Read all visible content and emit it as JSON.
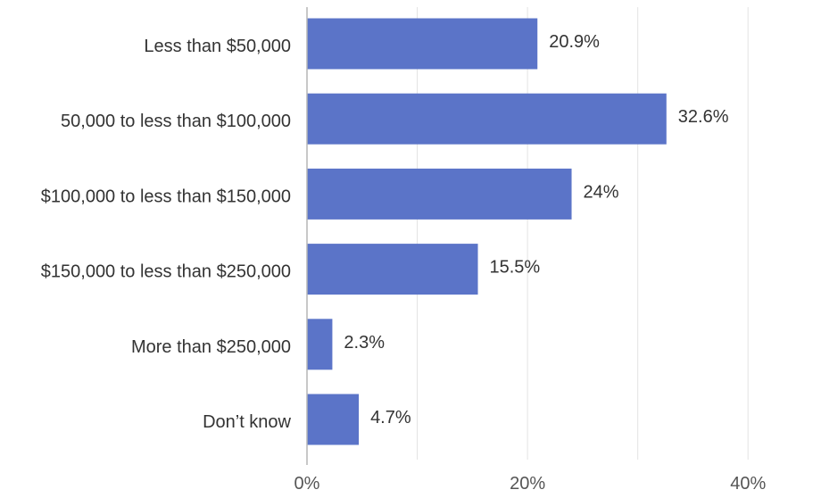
{
  "chart_data": {
    "type": "bar",
    "orientation": "horizontal",
    "categories": [
      "Less than $50,000",
      "50,000 to less than $100,000",
      "$100,000 to less than $150,000",
      "$150,000 to less than $250,000",
      "More than $250,000",
      "Don’t know"
    ],
    "values": [
      20.9,
      32.6,
      24,
      15.5,
      2.3,
      4.7
    ],
    "value_labels": [
      "20.9%",
      "32.6%",
      "24%",
      "15.5%",
      "2.3%",
      "4.7%"
    ],
    "xlim": [
      0,
      45
    ],
    "xticks": [
      0,
      20,
      40
    ],
    "xtick_labels": [
      "0%",
      "20%",
      "40%"
    ],
    "minor_gridlines": [
      10,
      30
    ],
    "grid": true,
    "bar_color": "#5b74c8",
    "title": "",
    "xlabel": "",
    "ylabel": ""
  }
}
